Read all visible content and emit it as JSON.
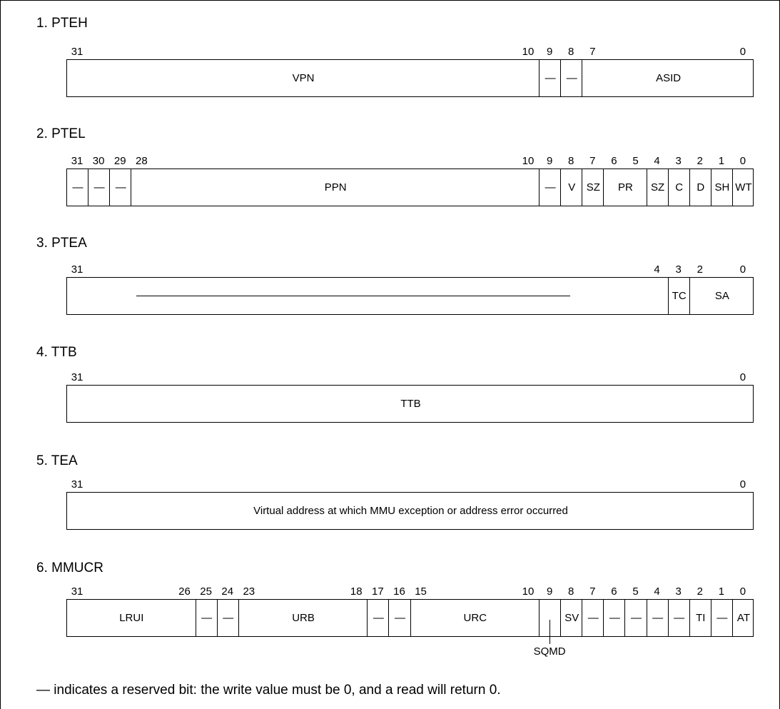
{
  "reserved_symbol": "—",
  "footnote": "— indicates a reserved bit: the write value must be 0, and a read will return 0.",
  "registers": [
    {
      "title": "1. PTEH",
      "bit_labels": [
        "31",
        "10",
        "9",
        "8",
        "7",
        "0"
      ],
      "fields": [
        {
          "label": "VPN",
          "hi": 31,
          "lo": 10
        },
        {
          "label": "—",
          "hi": 9,
          "lo": 9
        },
        {
          "label": "—",
          "hi": 8,
          "lo": 8
        },
        {
          "label": "ASID",
          "hi": 7,
          "lo": 0
        }
      ]
    },
    {
      "title": "2. PTEL",
      "bit_labels": [
        "31",
        "30",
        "29",
        "28",
        "10",
        "9",
        "8",
        "7",
        "6",
        "5",
        "4",
        "3",
        "2",
        "1",
        "0"
      ],
      "fields": [
        {
          "label": "—",
          "hi": 31,
          "lo": 31
        },
        {
          "label": "—",
          "hi": 30,
          "lo": 30
        },
        {
          "label": "—",
          "hi": 29,
          "lo": 29
        },
        {
          "label": "PPN",
          "hi": 28,
          "lo": 10
        },
        {
          "label": "—",
          "hi": 9,
          "lo": 9
        },
        {
          "label": "V",
          "hi": 8,
          "lo": 8
        },
        {
          "label": "SZ",
          "hi": 7,
          "lo": 7
        },
        {
          "label": "PR",
          "hi": 6,
          "lo": 5
        },
        {
          "label": "SZ",
          "hi": 4,
          "lo": 4
        },
        {
          "label": "C",
          "hi": 3,
          "lo": 3
        },
        {
          "label": "D",
          "hi": 2,
          "lo": 2
        },
        {
          "label": "SH",
          "hi": 1,
          "lo": 1
        },
        {
          "label": "WT",
          "hi": 0,
          "lo": 0
        }
      ]
    },
    {
      "title": "3. PTEA",
      "bit_labels": [
        "31",
        "4",
        "3",
        "2",
        "0"
      ],
      "fields": [
        {
          "label": "",
          "hi": 31,
          "lo": 4,
          "reserved_rule": true
        },
        {
          "label": "TC",
          "hi": 3,
          "lo": 3
        },
        {
          "label": "SA",
          "hi": 2,
          "lo": 0
        }
      ]
    },
    {
      "title": "4. TTB",
      "bit_labels": [
        "31",
        "0"
      ],
      "fields": [
        {
          "label": "TTB",
          "hi": 31,
          "lo": 0
        }
      ]
    },
    {
      "title": "5. TEA",
      "bit_labels": [
        "31",
        "0"
      ],
      "fields": [
        {
          "label": "Virtual address at which MMU exception or address error occurred",
          "hi": 31,
          "lo": 0
        }
      ]
    },
    {
      "title": "6. MMUCR",
      "bit_labels": [
        "31",
        "26",
        "25",
        "24",
        "23",
        "18",
        "17",
        "16",
        "15",
        "10",
        "9",
        "8",
        "7",
        "6",
        "5",
        "4",
        "3",
        "2",
        "1",
        "0"
      ],
      "fields": [
        {
          "label": "LRUI",
          "hi": 31,
          "lo": 26
        },
        {
          "label": "—",
          "hi": 25,
          "lo": 25
        },
        {
          "label": "—",
          "hi": 24,
          "lo": 24
        },
        {
          "label": "URB",
          "hi": 23,
          "lo": 18
        },
        {
          "label": "—",
          "hi": 17,
          "lo": 17
        },
        {
          "label": "—",
          "hi": 16,
          "lo": 16
        },
        {
          "label": "URC",
          "hi": 15,
          "lo": 10
        },
        {
          "label": "",
          "hi": 9,
          "lo": 9,
          "callout": "SQMD"
        },
        {
          "label": "SV",
          "hi": 8,
          "lo": 8
        },
        {
          "label": "—",
          "hi": 7,
          "lo": 7
        },
        {
          "label": "—",
          "hi": 6,
          "lo": 6
        },
        {
          "label": "—",
          "hi": 5,
          "lo": 5
        },
        {
          "label": "—",
          "hi": 4,
          "lo": 4
        },
        {
          "label": "—",
          "hi": 3,
          "lo": 3
        },
        {
          "label": "TI",
          "hi": 2,
          "lo": 2
        },
        {
          "label": "—",
          "hi": 1,
          "lo": 1
        },
        {
          "label": "AT",
          "hi": 0,
          "lo": 0
        }
      ]
    }
  ]
}
